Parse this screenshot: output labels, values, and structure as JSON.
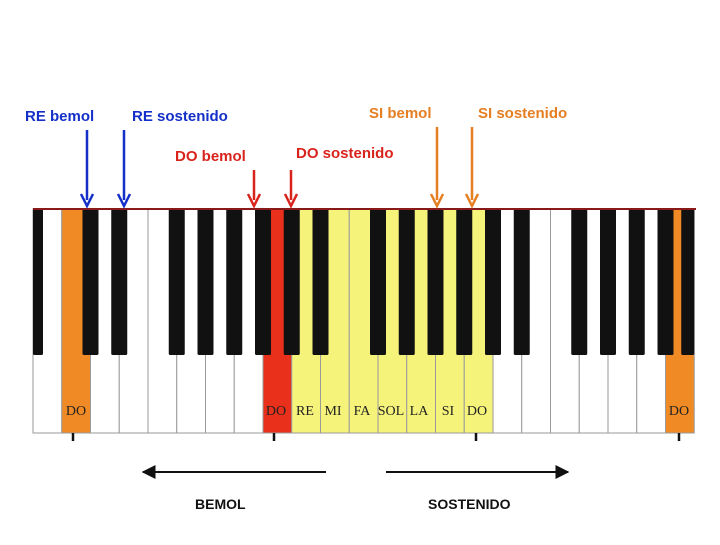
{
  "colors": {
    "blue": "#1430c8",
    "red": "#d8241c",
    "orange": "#e67e22",
    "key_orange": "#f08a24",
    "key_red": "#e8301a",
    "key_yellow": "#f6f37a",
    "black_key": "#111111",
    "white_key": "#ffffff"
  },
  "labels": {
    "re_bemol": "RE bemol",
    "re_sostenido": "RE sostenido",
    "do_bemol": "DO bemol",
    "do_sostenido": "DO sostenido",
    "si_bemol": "SI bemol",
    "si_sostenido": "SI sostenido"
  },
  "keys": {
    "do_left": "DO",
    "do_red": "DO",
    "re": "RE",
    "mi": "MI",
    "fa": "FA",
    "sol": "SOL",
    "la": "LA",
    "si": "SI",
    "do_yellow": "DO",
    "do_right": "DO"
  },
  "bottom": {
    "bemol": "BEMOL",
    "sostenido": "SOSTENIDO"
  }
}
